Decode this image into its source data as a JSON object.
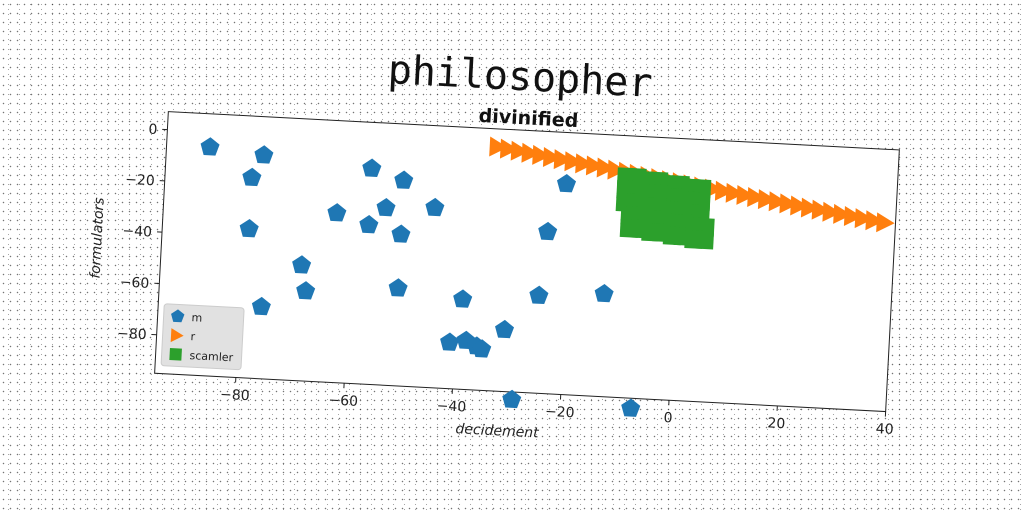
{
  "figure": {
    "title": "philosopher"
  },
  "chart_data": {
    "type": "scatter",
    "title": "divinified",
    "xlabel": "decidement",
    "ylabel": "formulators",
    "xlim": [
      -95,
      40
    ],
    "ylim": [
      -95,
      7
    ],
    "xticks": [
      -80,
      -60,
      -40,
      -20,
      0,
      20,
      40
    ],
    "yticks": [
      0,
      -20,
      -40,
      -60,
      -80
    ],
    "xtick_labels": [
      "−80",
      "−60",
      "−40",
      "−20",
      "0",
      "20",
      "40"
    ],
    "ytick_labels": [
      "0",
      "−20",
      "−40",
      "−60",
      "−80"
    ],
    "grid": false,
    "legend_position": "lower-left",
    "series": [
      {
        "name": "m",
        "legend_label": "m",
        "marker": "pentagon",
        "color": "#1f77b4",
        "x": [
          -87,
          -77,
          -79,
          -79,
          -76,
          -69,
          -68,
          -63,
          -57,
          -57,
          -54,
          -51,
          -51,
          -51,
          -45,
          -41,
          -39,
          -38,
          -36,
          -35,
          -31,
          -29,
          -25,
          -24,
          -21,
          -13,
          -7
        ],
        "y": [
          -6,
          -8,
          -17,
          -37,
          -67,
          -50,
          -60,
          -29,
          -11,
          -33,
          -26,
          -15,
          -36,
          -57,
          -25,
          -77,
          -60,
          -76,
          -78,
          -79,
          -71,
          -98,
          -57,
          -32,
          -13,
          -55,
          -99
        ]
      },
      {
        "name": "r",
        "legend_label": "r",
        "marker": "triangle-right",
        "color": "#ff7f0e",
        "x": [
          -34,
          -32,
          -30,
          -28,
          -26,
          -24,
          -22,
          -20,
          -18,
          -16,
          -14,
          -12,
          -10,
          -8,
          -6,
          -4,
          -2,
          0,
          2,
          4,
          6,
          8,
          10,
          12,
          14,
          16,
          18,
          20,
          22,
          24,
          26,
          28,
          30,
          32,
          34,
          36,
          38
        ],
        "y": [
          0,
          -0.6,
          -1.2,
          -1.8,
          -2.4,
          -3,
          -3.6,
          -4.2,
          -4.8,
          -5.4,
          -6,
          -6.6,
          -7.2,
          -7.8,
          -8.4,
          -9,
          -9.6,
          -10.2,
          -10.8,
          -11.4,
          -12,
          -12.6,
          -13.2,
          -13.8,
          -14.4,
          -15,
          -15.6,
          -16.2,
          -16.8,
          -17.4,
          -18,
          -18.6,
          -19.2,
          -19.8,
          -20.4,
          -21,
          -21.6
        ]
      },
      {
        "name": "scamler",
        "legend_label": "scamler",
        "marker": "square",
        "color": "#2ca02c",
        "x": [
          -10,
          -8,
          -6,
          -4,
          -2,
          0,
          2,
          4,
          -10,
          -8,
          -6,
          -4,
          -2,
          0,
          2,
          4,
          -10,
          -8,
          -6,
          -4,
          -2,
          0,
          2,
          4,
          -9,
          -7,
          -5,
          -3,
          -1,
          1,
          3,
          5,
          -9,
          -7,
          -5,
          -3,
          -1,
          1,
          3,
          5
        ],
        "y": [
          -9,
          -9,
          -10,
          -10,
          -11,
          -11,
          -12,
          -12,
          -14,
          -14,
          -15,
          -15,
          -16,
          -16,
          -17,
          -17,
          -19,
          -19,
          -20,
          -20,
          -21,
          -21,
          -22,
          -22,
          -24,
          -24,
          -25,
          -25,
          -26,
          -26,
          -27,
          -27,
          -29,
          -29,
          -30,
          -30,
          -31,
          -31,
          -32,
          -32
        ]
      }
    ]
  }
}
